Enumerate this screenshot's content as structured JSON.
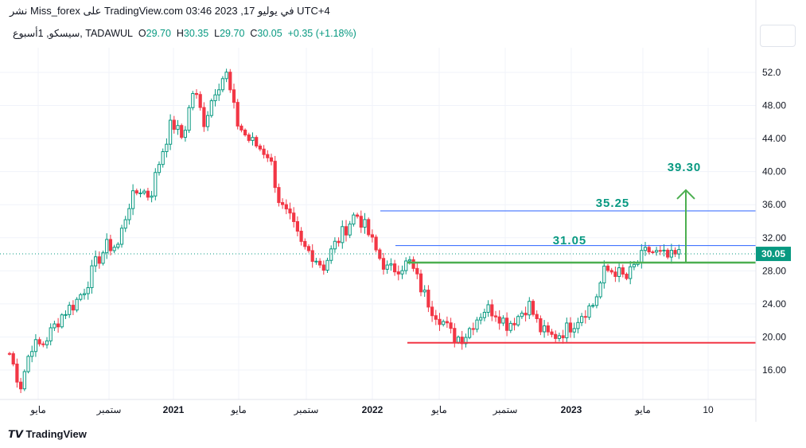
{
  "header": {
    "published": "نشر Miss_forex على TradingView.com 03:46 2023 ,17 في يوليو UTC+4"
  },
  "legend": {
    "symbol": "سيسكو, 1أسبوع, TADAWUL",
    "o_label": "O",
    "o": "29.70",
    "h_label": "H",
    "h": "30.35",
    "l_label": "L",
    "l": "29.70",
    "c_label": "C",
    "c": "30.05",
    "change": "+0.35 (+1.18%)"
  },
  "price_axis": {
    "ticks": [
      "52.0",
      "48.00",
      "44.00",
      "40.00",
      "36.00",
      "32.00",
      "28.00",
      "24.00",
      "20.00",
      "16.00"
    ],
    "last_price": "30.05"
  },
  "time_axis": {
    "ticks": [
      "مايو",
      "ستمبر",
      "2021",
      "مايو",
      "ستمبر",
      "2022",
      "مايو",
      "ستمبر",
      "2023",
      "مايو",
      "10"
    ]
  },
  "annotations": {
    "target": "39.30",
    "level1": "35.25",
    "level2": "31.05",
    "support": "29.0",
    "bottom": "19.3"
  },
  "colors": {
    "up": "#089981",
    "down": "#f23645",
    "blue": "#2962ff",
    "green": "#4caf50",
    "red": "#f23645"
  },
  "chart_data": {
    "type": "candlestick",
    "title": "سيسكو, 1أسبوع, TADAWUL",
    "ylim": [
      14,
      54
    ],
    "closes": [
      18,
      14,
      19,
      19,
      21,
      23,
      24,
      26,
      29,
      31,
      31,
      36,
      38,
      37,
      42,
      46,
      44,
      50,
      46,
      50,
      52,
      46,
      44,
      43,
      42,
      36,
      34,
      31,
      30,
      28.5,
      31,
      33,
      35,
      33,
      30,
      28,
      28.5,
      29,
      26,
      23.5,
      22,
      20,
      20,
      22,
      23.5,
      23,
      21.5,
      22.5,
      24,
      21,
      20,
      20.5,
      21.5,
      23,
      24,
      28,
      28,
      27,
      29,
      30.5,
      30,
      29.5,
      30.05
    ]
  },
  "footer": {
    "brand": "TradingView"
  }
}
